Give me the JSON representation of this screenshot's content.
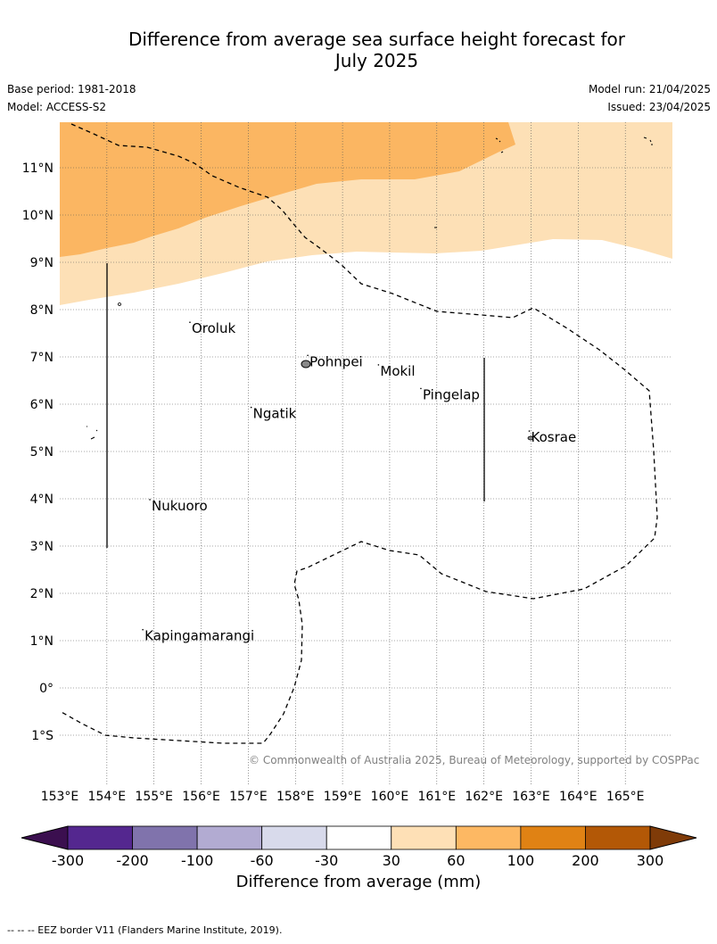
{
  "header": {
    "title_line1": "Difference from average sea surface height forecast for",
    "title_line2": "July 2025",
    "base_period": "Base period: 1981-2018",
    "model": "Model: ACCESS-S2",
    "model_run": "Model run: 21/04/2025",
    "issued": "Issued: 23/04/2025"
  },
  "map": {
    "lon_range": [
      153,
      166
    ],
    "lat_range": [
      -2,
      12
    ],
    "lon_ticks": [
      "153°E",
      "154°E",
      "155°E",
      "156°E",
      "157°E",
      "158°E",
      "159°E",
      "160°E",
      "161°E",
      "162°E",
      "163°E",
      "164°E",
      "165°E"
    ],
    "lat_ticks": [
      "1°S",
      "0°",
      "1°N",
      "2°N",
      "3°N",
      "4°N",
      "5°N",
      "6°N",
      "7°N",
      "8°N",
      "9°N",
      "10°N",
      "11°N"
    ],
    "places": [
      {
        "name": "Oroluk",
        "lon": 155.8,
        "lat": 7.6
      },
      {
        "name": "Pohnpei",
        "lon": 158.3,
        "lat": 6.9
      },
      {
        "name": "Mokil",
        "lon": 159.8,
        "lat": 6.7
      },
      {
        "name": "Pingelap",
        "lon": 160.7,
        "lat": 6.2
      },
      {
        "name": "Ngatik",
        "lon": 157.1,
        "lat": 5.8
      },
      {
        "name": "Kosrae",
        "lon": 163.0,
        "lat": 5.3
      },
      {
        "name": "Nukuoro",
        "lon": 154.95,
        "lat": 3.85
      },
      {
        "name": "Kapingamarangi",
        "lon": 154.8,
        "lat": 1.1
      }
    ],
    "colors": {
      "band_30_60": "#fde0b6",
      "band_60_100": "#fbb662",
      "eez": "#000000",
      "grid": "#555555"
    },
    "copyright": "© Commonwealth of Australia 2025, Bureau of Meteorology, supported by COSPPac"
  },
  "colorbar": {
    "title": "Difference from average (mm)",
    "ticks": [
      "-300",
      "-200",
      "-100",
      "-60",
      "-30",
      "30",
      "60",
      "100",
      "200",
      "300"
    ],
    "colors": [
      "#3b0f4f",
      "#54278f",
      "#8073ac",
      "#b2abd2",
      "#d8daeb",
      "#ffffff",
      "#fee0b6",
      "#fdb863",
      "#e08214",
      "#b35806",
      "#7f3b08"
    ]
  },
  "footnote": "--  --  -- EEZ border V11 (Flanders Marine Institute, 2019)."
}
